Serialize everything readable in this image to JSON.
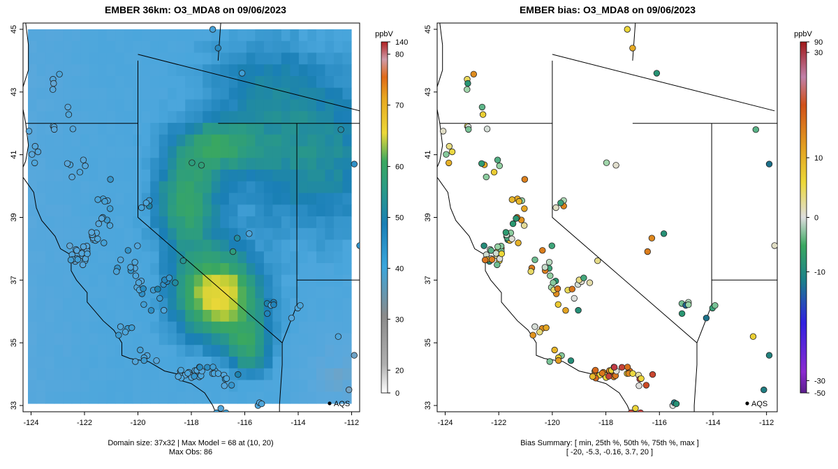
{
  "panels": {
    "left": {
      "title": "EMBER 36km: O3_MDA8 on 09/06/2023",
      "footer_line1": "Domain size: 37x32 | Max Model = 68 at (10, 20)",
      "footer_line2": "Max Obs: 86",
      "colorbar_unit": "ppbV",
      "colorbar_ticks": [
        "140",
        "80",
        "70",
        "60",
        "50",
        "40",
        "30",
        "20",
        "0"
      ],
      "legend_label": "AQS"
    },
    "right": {
      "title": "EMBER bias: O3_MDA8 on 09/06/2023",
      "footer_line1": "Bias Summary: [ min, 25th %, 50th %, 75th %, max ]",
      "footer_line2": "[ -20,   -5.3,   -0.16,   3.7,   20 ]",
      "colorbar_unit": "ppbV",
      "colorbar_ticks": [
        "90",
        "30",
        "10",
        "0",
        "-10",
        "-30",
        "-50"
      ],
      "legend_label": "AQS"
    }
  },
  "axes": {
    "x_ticks": [
      "-124",
      "-122",
      "-120",
      "-118",
      "-116",
      "-114",
      "-112"
    ],
    "y_ticks": [
      "45",
      "43",
      "41",
      "39",
      "37",
      "35",
      "33"
    ]
  },
  "colors": {
    "ocean": "#4aa6dc",
    "ocean_far": "#7aa6c6",
    "mid": "#1f8fb0",
    "green": "#2f9a7f",
    "yellow": "#e6d640",
    "orange": "#e3a020",
    "border": "#000000"
  },
  "chart_data": {
    "type": "map",
    "variable": "O3_MDA8",
    "date": "09/06/2023",
    "model_max": 68,
    "model_max_cell": [
      10,
      20
    ],
    "domain_size": "37x32",
    "obs_max": 86,
    "bias_summary": {
      "min": -20,
      "p25": -5.3,
      "p50": -0.16,
      "p75": 3.7,
      "max": 20
    }
  }
}
